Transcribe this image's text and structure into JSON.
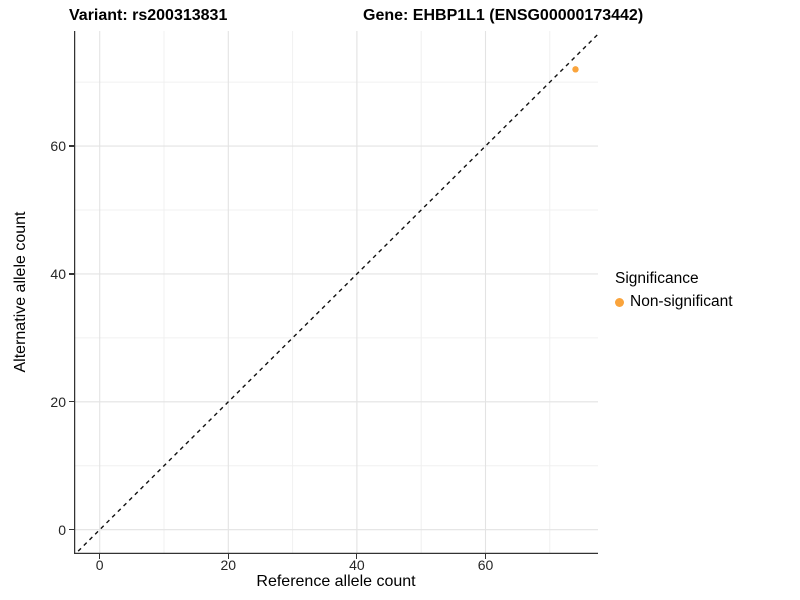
{
  "chart_data": {
    "type": "scatter",
    "titles": [
      "Variant: rs200313831",
      "Gene: EHBP1L1 (ENSG00000173442)"
    ],
    "xlabel": "Reference allele count",
    "ylabel": "Alternative allele count",
    "xlim": [
      -4,
      77.5
    ],
    "ylim": [
      -3.8,
      78
    ],
    "x_ticks": [
      0,
      20,
      40,
      60
    ],
    "y_ticks": [
      0,
      20,
      40,
      60
    ],
    "x_minor": [
      10,
      30,
      50,
      70
    ],
    "y_minor": [
      10,
      30,
      50,
      70
    ],
    "grid": "major and minor gridlines on, white background",
    "identity_line": {
      "type": "dashed",
      "equation": "y = x",
      "color": "#111111"
    },
    "points": [
      {
        "x": 74,
        "y": 72,
        "series": "Non-significant"
      }
    ],
    "legend": {
      "position": "right",
      "title": "Significance",
      "items": [
        {
          "label": "Non-significant",
          "color": "#FAA43C"
        }
      ]
    },
    "colors": {
      "point": "#FAA43C",
      "axis_line": "#333333",
      "tick_label": "#262626",
      "grid_major": "#E3E3E3",
      "grid_minor": "#F0F0F0"
    }
  }
}
